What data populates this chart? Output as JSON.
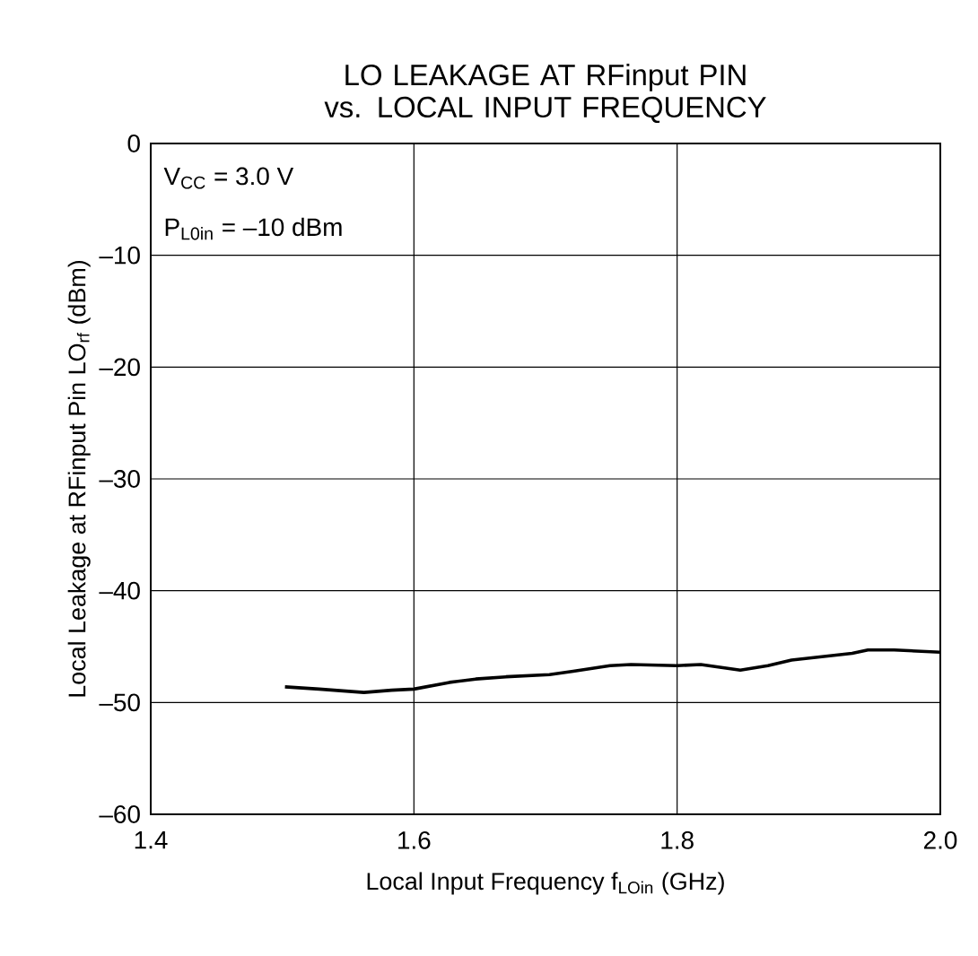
{
  "chart_data": {
    "type": "line",
    "title": "LO LEAKAGE AT RFinput PIN vs. LOCAL INPUT FREQUENCY",
    "xlabel": "Local Input Frequency  f$_{LOin}$ (GHz)",
    "ylabel": "Local Leakage at RFinput Pin  LO$_{rf}$ (dBm)",
    "annotations": [
      "V$_{CC}$ = 3.0 V",
      "P$_{L0in}$ = –10 dBm"
    ],
    "x": [
      1.502,
      1.528,
      1.562,
      1.583,
      1.6,
      1.627,
      1.647,
      1.67,
      1.703,
      1.721,
      1.749,
      1.765,
      1.8,
      1.818,
      1.848,
      1.869,
      1.887,
      1.91,
      1.933,
      1.945,
      1.965,
      2.0
    ],
    "series": [
      {
        "color": "#000000",
        "values": [
          -48.6,
          -48.8,
          -49.1,
          -48.9,
          -48.8,
          -48.2,
          -47.9,
          -47.7,
          -47.5,
          -47.2,
          -46.7,
          -46.6,
          -46.7,
          -46.6,
          -47.1,
          -46.7,
          -46.2,
          -45.9,
          -45.6,
          -45.3,
          -45.3,
          -45.5
        ]
      }
    ],
    "xlim": [
      1.4,
      2.0
    ],
    "ylim": [
      -60,
      0
    ],
    "xticks": [
      1.4,
      1.6,
      1.8,
      {
        "value": 2.0,
        "label": "2.0"
      }
    ],
    "yticks": [
      0,
      {
        "value": -10,
        "label": "–10"
      },
      {
        "value": -20,
        "label": "–20"
      },
      {
        "value": -30,
        "label": "–30"
      },
      {
        "value": -40,
        "label": "–40"
      },
      {
        "value": -50,
        "label": "–50"
      },
      {
        "value": -60,
        "label": "–60"
      }
    ],
    "grid": true,
    "marker": "none",
    "line_style": "solid"
  }
}
